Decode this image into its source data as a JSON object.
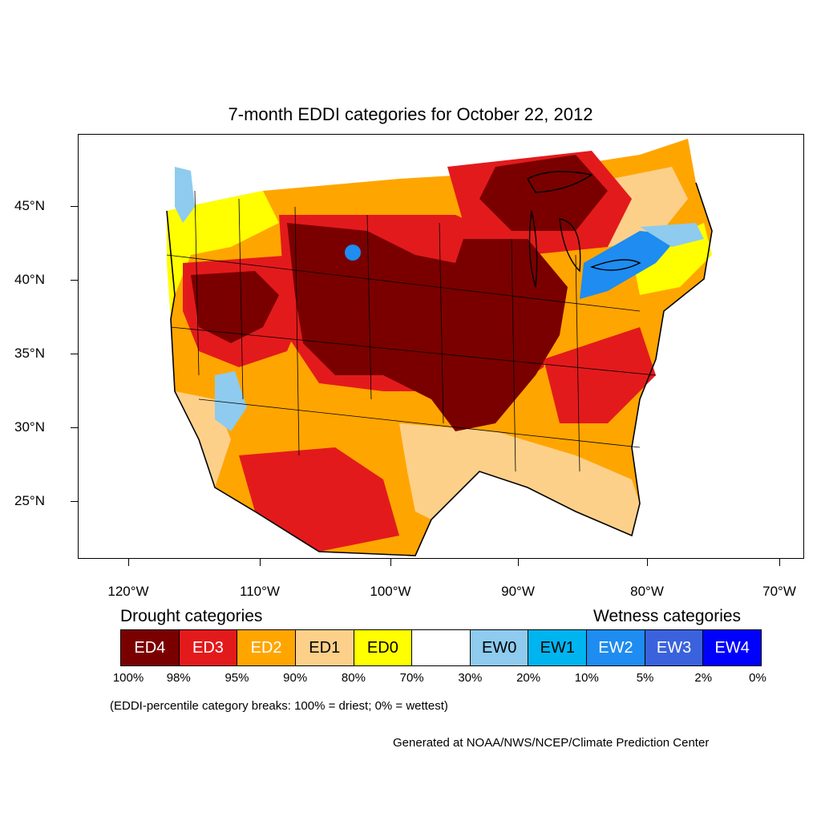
{
  "title": "7-month EDDI categories for October 22, 2012",
  "lat_labels": [
    "45°N",
    "40°N",
    "35°N",
    "30°N",
    "25°N"
  ],
  "lon_labels": [
    "120°W",
    "110°W",
    "100°W",
    "90°W",
    "80°W",
    "70°W"
  ],
  "legend": {
    "drought_heading": "Drought categories",
    "wetness_heading": "Wetness categories",
    "categories": [
      {
        "label": "ED4",
        "color": "#7a0000",
        "text_color": "#ffffff"
      },
      {
        "label": "ED3",
        "color": "#e31a1c",
        "text_color": "#ffffff"
      },
      {
        "label": "ED2",
        "color": "#ffa500",
        "text_color": "#ffffff"
      },
      {
        "label": "ED1",
        "color": "#fdd08a",
        "text_color": "#000000"
      },
      {
        "label": "ED0",
        "color": "#ffff00",
        "text_color": "#000000"
      },
      {
        "label": "",
        "color": "#ffffff",
        "text_color": "#000000"
      },
      {
        "label": "EW0",
        "color": "#8ecbee",
        "text_color": "#000000"
      },
      {
        "label": "EW1",
        "color": "#00b4ef",
        "text_color": "#000000"
      },
      {
        "label": "EW2",
        "color": "#1e8cf0",
        "text_color": "#ffffff"
      },
      {
        "label": "EW3",
        "color": "#3a62dd",
        "text_color": "#ffffff"
      },
      {
        "label": "EW4",
        "color": "#0000ff",
        "text_color": "#ffffff"
      }
    ],
    "breaks": [
      "100%",
      "98%",
      "95%",
      "90%",
      "80%",
      "70%",
      "30%",
      "20%",
      "10%",
      "5%",
      "2%",
      "0%"
    ]
  },
  "note": "(EDDI-percentile category breaks: 100% = driest; 0% = wettest)",
  "credit": "Generated at NOAA/NWS/NCEP/Climate Prediction Center"
}
